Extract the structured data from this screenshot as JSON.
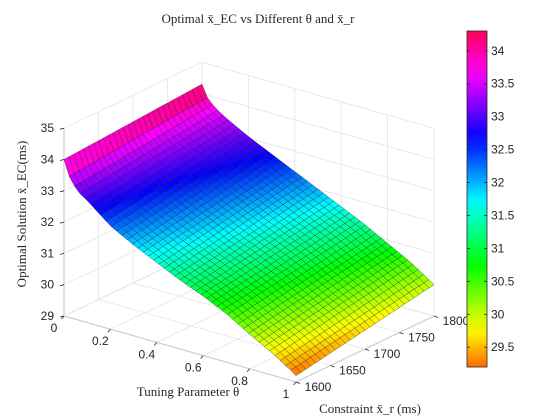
{
  "chart_data": {
    "type": "surface",
    "title": "Optimal x̄_EC  vs Different θ and x̄_r",
    "xlabel": "Tuning Parameter θ",
    "ylabel": "Constraint x̄_r (ms)",
    "zlabel": "Optimal Solution x̄_EC(ms)",
    "xlim": [
      0,
      1
    ],
    "ylim": [
      1600,
      1800
    ],
    "zlim": [
      29,
      35
    ],
    "x_ticks": [
      "0",
      "0.2",
      "0.4",
      "0.6",
      "0.8",
      "1"
    ],
    "y_ticks": [
      "1600",
      "1650",
      "1700",
      "1750",
      "1800"
    ],
    "z_ticks": [
      "29",
      "30",
      "31",
      "32",
      "33",
      "34",
      "35"
    ],
    "x_values": [
      0,
      0.01,
      0.03,
      0.06,
      0.1,
      0.15,
      0.2,
      0.3,
      0.4,
      0.5,
      0.6,
      0.7,
      0.8,
      0.85,
      0.9,
      0.94,
      0.97,
      0.99,
      1
    ],
    "z_at_min_constraint": [
      34.0,
      33.7,
      33.4,
      33.1,
      32.9,
      32.6,
      32.3,
      31.9,
      31.55,
      31.2,
      30.9,
      30.55,
      30.1,
      29.9,
      29.7,
      29.5,
      29.35,
      29.3,
      29.2
    ],
    "z_at_max_constraint": [
      34.3,
      34.05,
      33.85,
      33.65,
      33.45,
      33.25,
      33.05,
      32.7,
      32.35,
      32.0,
      31.65,
      31.3,
      30.9,
      30.7,
      30.5,
      30.3,
      30.15,
      30.05,
      30.0
    ],
    "colorbar": {
      "limits": [
        29.2,
        34.3
      ],
      "ticks": [
        "29.5",
        "30",
        "30.5",
        "31",
        "31.5",
        "32",
        "32.5",
        "33",
        "33.5",
        "34"
      ]
    },
    "grid": true,
    "colormap": "hsv"
  }
}
